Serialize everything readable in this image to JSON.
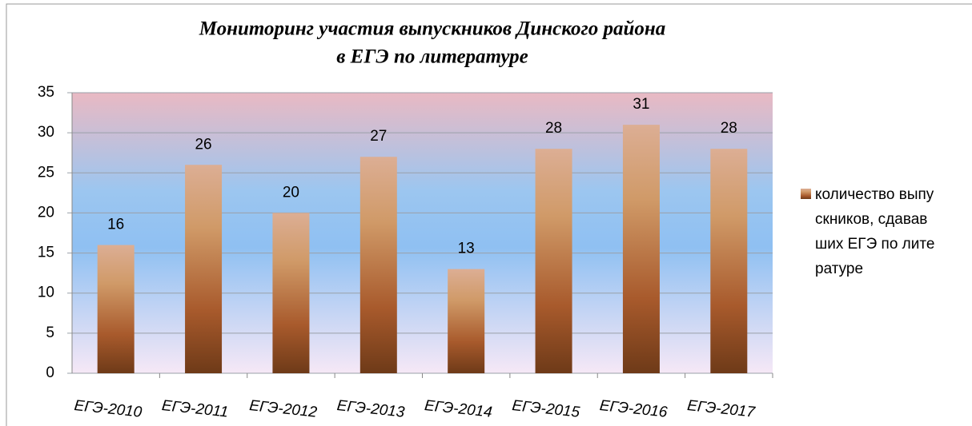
{
  "chart_data": {
    "type": "bar",
    "title": [
      "Мониторинг  участия выпускников Динского района",
      "в ЕГЭ по литературе"
    ],
    "categories": [
      "ЕГЭ-2010",
      "ЕГЭ-2011",
      "ЕГЭ-2012",
      "ЕГЭ-2013",
      "ЕГЭ-2014",
      "ЕГЭ-2015",
      "ЕГЭ-2016",
      "ЕГЭ-2017"
    ],
    "series": [
      {
        "name": "количество выпускников, сдававших ЕГЭ по литературе",
        "color": "#b5683a",
        "values": [
          16,
          26,
          20,
          27,
          13,
          28,
          31,
          28
        ]
      }
    ],
    "ylim": [
      0,
      35
    ],
    "yticks": [
      0,
      5,
      10,
      15,
      20,
      25,
      30,
      35
    ],
    "grid": true,
    "legend": "right"
  }
}
